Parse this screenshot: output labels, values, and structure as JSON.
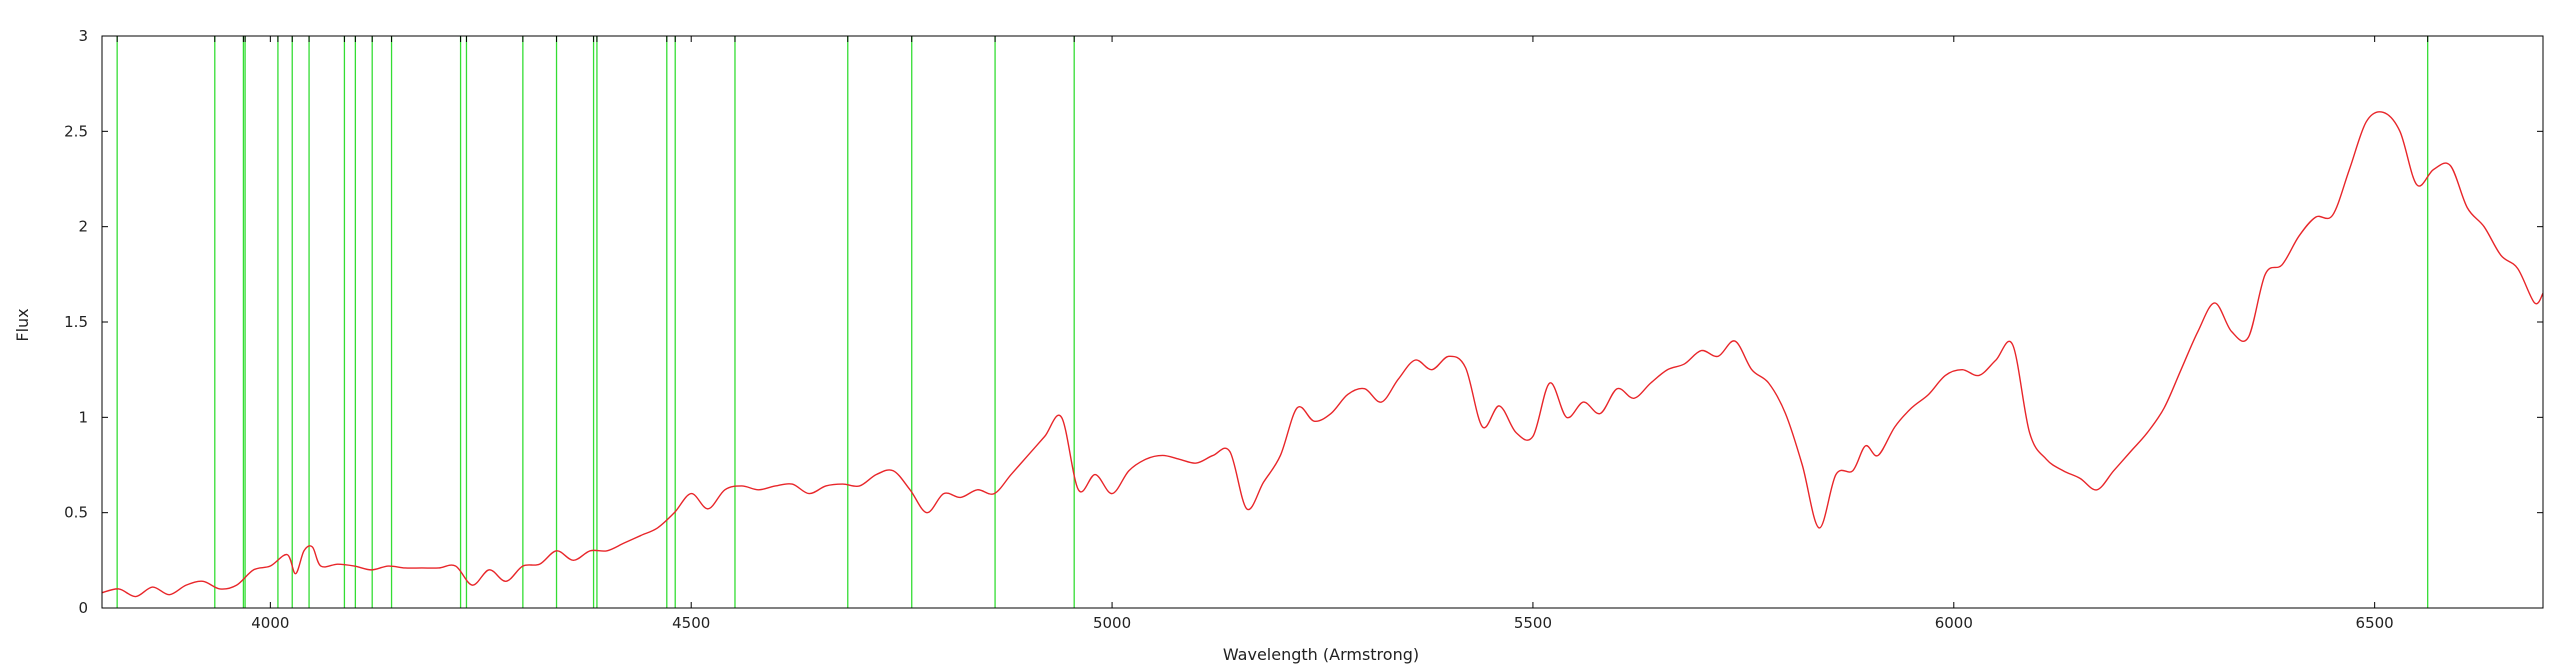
{
  "chart_data": {
    "type": "line",
    "title": "",
    "xlabel": "Wavelength (Armstrong)",
    "ylabel": "Flux",
    "xlim": [
      3800,
      6700
    ],
    "ylim": [
      0,
      3
    ],
    "x_ticks": [
      4000,
      4500,
      5000,
      5500,
      6000,
      6500
    ],
    "y_ticks": [
      0,
      0.5,
      1,
      1.5,
      2,
      2.5,
      3
    ],
    "x_tick_labels": [
      "4000",
      "4500",
      "5000",
      "5500",
      "6000",
      "6500"
    ],
    "y_tick_labels": [
      "0",
      "0.5",
      "1",
      "1.5",
      "2",
      "2.5",
      "3"
    ],
    "grid": false,
    "legend": "none",
    "colors": {
      "spectrum": "#e8262a",
      "lines": "#33dd33",
      "axis": "#000000"
    },
    "series": [
      {
        "x": [
          3800,
          3820,
          3840,
          3860,
          3880,
          3900,
          3920,
          3940,
          3960,
          3980,
          4000,
          4020,
          4030,
          4040,
          4050,
          4060,
          4080,
          4100,
          4120,
          4140,
          4160,
          4180,
          4200,
          4220,
          4240,
          4260,
          4280,
          4300,
          4320,
          4340,
          4360,
          4380,
          4400,
          4420,
          4440,
          4460,
          4480,
          4500,
          4520,
          4540,
          4560,
          4580,
          4600,
          4620,
          4640,
          4660,
          4680,
          4700,
          4720,
          4740,
          4760,
          4780,
          4800,
          4820,
          4840,
          4860,
          4880,
          4900,
          4920,
          4940,
          4960,
          4980,
          5000,
          5020,
          5040,
          5060,
          5080,
          5100,
          5120,
          5140,
          5160,
          5180,
          5200,
          5220,
          5240,
          5260,
          5280,
          5300,
          5320,
          5340,
          5360,
          5380,
          5400,
          5420,
          5440,
          5460,
          5480,
          5500,
          5520,
          5540,
          5560,
          5580,
          5600,
          5620,
          5640,
          5660,
          5680,
          5700,
          5720,
          5740,
          5760,
          5780,
          5800,
          5820,
          5840,
          5860,
          5880,
          5895,
          5910,
          5930,
          5950,
          5970,
          5990,
          6010,
          6030,
          6050,
          6070,
          6090,
          6110,
          6130,
          6150,
          6170,
          6190,
          6210,
          6230,
          6250,
          6270,
          6290,
          6310,
          6330,
          6350,
          6370,
          6390,
          6410,
          6430,
          6450,
          6470,
          6490,
          6510,
          6530,
          6550,
          6570,
          6590,
          6610,
          6630,
          6650,
          6670,
          6690,
          6700
        ],
        "y": [
          0.08,
          0.1,
          0.06,
          0.11,
          0.07,
          0.12,
          0.14,
          0.1,
          0.12,
          0.2,
          0.22,
          0.28,
          0.18,
          0.3,
          0.32,
          0.22,
          0.23,
          0.22,
          0.2,
          0.22,
          0.21,
          0.21,
          0.21,
          0.22,
          0.12,
          0.2,
          0.14,
          0.22,
          0.23,
          0.3,
          0.25,
          0.3,
          0.3,
          0.34,
          0.38,
          0.42,
          0.5,
          0.6,
          0.52,
          0.62,
          0.64,
          0.62,
          0.64,
          0.65,
          0.6,
          0.64,
          0.65,
          0.64,
          0.7,
          0.72,
          0.62,
          0.5,
          0.6,
          0.58,
          0.62,
          0.6,
          0.7,
          0.8,
          0.9,
          1.0,
          0.62,
          0.7,
          0.6,
          0.72,
          0.78,
          0.8,
          0.78,
          0.76,
          0.8,
          0.82,
          0.52,
          0.66,
          0.8,
          1.05,
          0.98,
          1.02,
          1.12,
          1.15,
          1.08,
          1.2,
          1.3,
          1.25,
          1.32,
          1.26,
          0.95,
          1.06,
          0.92,
          0.9,
          1.18,
          1.0,
          1.08,
          1.02,
          1.15,
          1.1,
          1.18,
          1.25,
          1.28,
          1.35,
          1.32,
          1.4,
          1.25,
          1.18,
          1.02,
          0.75,
          0.42,
          0.7,
          0.72,
          0.85,
          0.8,
          0.95,
          1.05,
          1.12,
          1.22,
          1.25,
          1.22,
          1.3,
          1.38,
          0.92,
          0.78,
          0.72,
          0.68,
          0.62,
          0.72,
          0.82,
          0.92,
          1.05,
          1.25,
          1.45,
          1.6,
          1.45,
          1.42,
          1.75,
          1.8,
          1.95,
          2.05,
          2.06,
          2.3,
          2.55,
          2.6,
          2.5,
          2.22,
          2.3,
          2.32,
          2.1,
          2.0,
          1.85,
          1.78,
          1.6,
          1.65
        ]
      }
    ],
    "vertical_lines": [
      3818,
      3934,
      3968,
      3970,
      4009,
      4026,
      4046,
      4088,
      4101,
      4121,
      4144,
      4226,
      4233,
      4300,
      4340,
      4384,
      4388,
      4471,
      4481,
      4552,
      4686,
      4762,
      4861,
      4955,
      6563
    ]
  }
}
